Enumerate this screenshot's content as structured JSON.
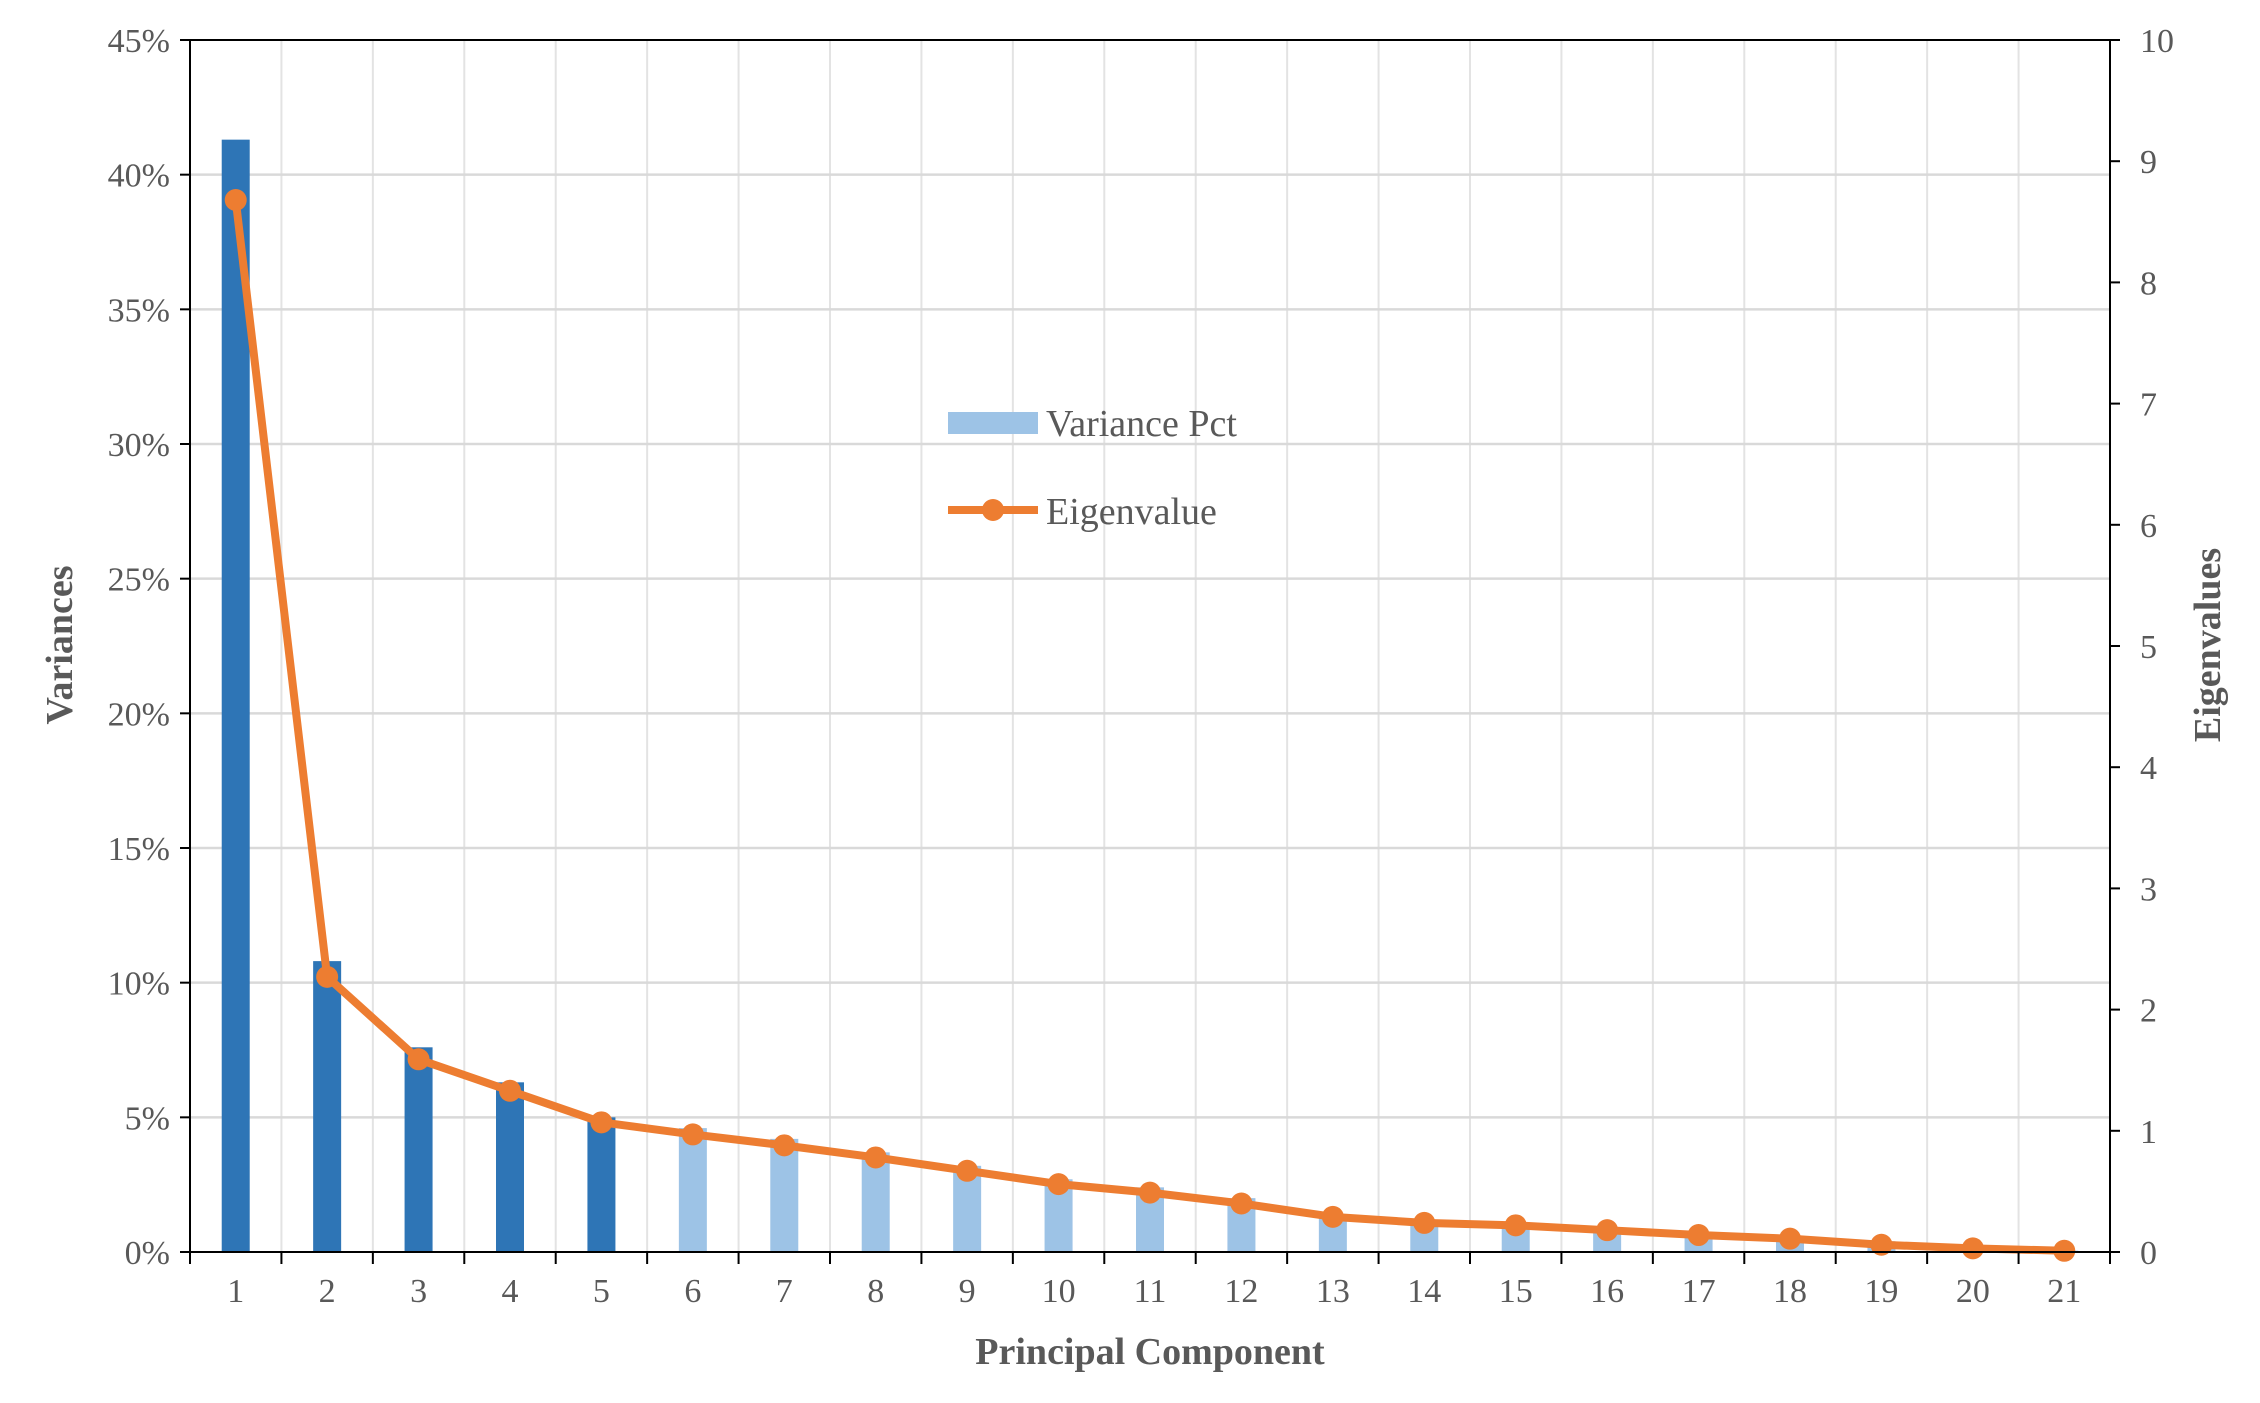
{
  "chart_data": {
    "type": "bar",
    "xlabel": "Principal Component",
    "ylabel_left": "Variances",
    "ylabel_right": "Eigenvalues",
    "categories": [
      "1",
      "2",
      "3",
      "4",
      "5",
      "6",
      "7",
      "8",
      "9",
      "10",
      "11",
      "12",
      "13",
      "14",
      "15",
      "16",
      "17",
      "18",
      "19",
      "20",
      "21"
    ],
    "ylim_left": [
      0,
      45
    ],
    "ylim_right": [
      0,
      10
    ],
    "yticks_left": [
      "0%",
      "5%",
      "10%",
      "15%",
      "20%",
      "25%",
      "30%",
      "35%",
      "40%",
      "45%"
    ],
    "yticks_right": [
      "0",
      "1",
      "2",
      "3",
      "4",
      "5",
      "6",
      "7",
      "8",
      "9",
      "10"
    ],
    "grid": "on",
    "legend_position": "center",
    "series": [
      {
        "name": "Variance Pct",
        "type": "bar",
        "axis": "left",
        "unit": "%",
        "color": "#9DC3E6",
        "highlight_color": "#2E75B6",
        "highlighted_count": 5,
        "values": [
          41.3,
          10.8,
          7.6,
          6.3,
          5.0,
          4.6,
          4.2,
          3.7,
          3.2,
          2.7,
          2.4,
          2.0,
          1.4,
          1.2,
          1.1,
          0.9,
          0.7,
          0.5,
          0.4,
          0.2,
          0.05
        ]
      },
      {
        "name": "Eigenvalue",
        "type": "line",
        "axis": "right",
        "color": "#ED7D31",
        "values": [
          8.68,
          2.27,
          1.59,
          1.33,
          1.07,
          0.97,
          0.88,
          0.78,
          0.67,
          0.56,
          0.49,
          0.4,
          0.29,
          0.24,
          0.22,
          0.18,
          0.14,
          0.11,
          0.06,
          0.03,
          0.01
        ]
      }
    ]
  }
}
